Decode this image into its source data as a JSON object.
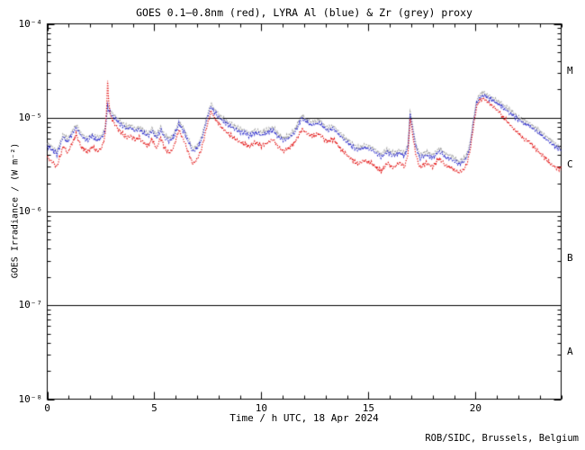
{
  "footer": "ROB/SIDC, Brussels, Belgium",
  "chart_data": {
    "type": "line",
    "title": "GOES 0.1–0.8nm (red), LYRA Al (blue) & Zr (grey) proxy",
    "xlabel": "Time / h UTC, 18 Apr 2024",
    "ylabel": "GOES Irradiance / (W m⁻²)",
    "xlim": [
      0,
      24
    ],
    "ylim_exponents": [
      -8,
      -4
    ],
    "x_major_ticks": [
      0,
      5,
      10,
      15,
      20
    ],
    "x_minor_step": 1,
    "y_tick_exponents": [
      -4,
      -5,
      -6,
      -7,
      -8
    ],
    "y_tick_labels": [
      "10⁻⁴",
      "10⁻⁵",
      "10⁻⁶",
      "10⁻⁷",
      "10⁻⁸"
    ],
    "hlines": [
      1e-05,
      1e-06,
      1e-07
    ],
    "flare_classes": [
      {
        "label": "M",
        "band_exponents": [
          -5,
          -4
        ]
      },
      {
        "label": "C",
        "band_exponents": [
          -6,
          -5
        ]
      },
      {
        "label": "B",
        "band_exponents": [
          -7,
          -6
        ]
      },
      {
        "label": "A",
        "band_exponents": [
          -8,
          -7
        ]
      }
    ],
    "grid": false,
    "line_style": "dotted",
    "unit": "values stored in 1e-6 W m-2",
    "x_hours": [
      0.0,
      0.45,
      0.75,
      0.95,
      1.35,
      1.6,
      1.85,
      2.1,
      2.35,
      2.55,
      2.7,
      2.78,
      2.82,
      2.86,
      2.95,
      3.1,
      3.3,
      3.5,
      3.7,
      3.9,
      4.1,
      4.3,
      4.5,
      4.7,
      4.9,
      5.1,
      5.3,
      5.5,
      5.7,
      5.9,
      6.15,
      6.4,
      6.6,
      6.8,
      7.0,
      7.2,
      7.45,
      7.65,
      7.8,
      8.0,
      8.3,
      8.6,
      8.9,
      9.2,
      9.45,
      9.7,
      10.0,
      10.3,
      10.55,
      10.8,
      11.05,
      11.3,
      11.55,
      11.9,
      12.1,
      12.3,
      12.7,
      12.9,
      13.1,
      13.35,
      13.6,
      13.9,
      14.2,
      14.5,
      14.8,
      15.1,
      15.35,
      15.6,
      15.9,
      16.15,
      16.45,
      16.7,
      16.85,
      16.95,
      17.05,
      17.2,
      17.4,
      17.7,
      18.0,
      18.3,
      18.6,
      18.9,
      19.2,
      19.45,
      19.6,
      19.75,
      19.9,
      20.05,
      20.2,
      20.4,
      20.6,
      20.85,
      21.1,
      21.4,
      21.7,
      22.0,
      22.3,
      22.5,
      22.7,
      23.0,
      23.3,
      23.6,
      23.8,
      24.0
    ],
    "series": [
      {
        "name": "GOES 0.1-0.8nm",
        "color": "#e00000",
        "values_1e6": [
          3.8,
          3.0,
          5.0,
          4.2,
          6.6,
          4.8,
          4.3,
          4.9,
          4.4,
          4.8,
          6.5,
          14,
          25,
          16,
          10.5,
          8.8,
          7.6,
          6.8,
          6.2,
          6.4,
          5.8,
          6.1,
          5.4,
          5.0,
          5.9,
          4.7,
          6.2,
          4.6,
          4.2,
          4.8,
          7.4,
          5.6,
          4.2,
          3.2,
          3.6,
          4.6,
          8.0,
          11.8,
          10.0,
          8.6,
          7.2,
          6.4,
          5.6,
          5.3,
          4.9,
          5.5,
          5.0,
          5.4,
          5.9,
          4.8,
          4.4,
          4.8,
          5.4,
          7.6,
          6.9,
          6.4,
          6.7,
          6.0,
          5.5,
          5.9,
          5.0,
          4.2,
          3.6,
          3.2,
          3.5,
          3.3,
          3.0,
          2.7,
          3.3,
          2.9,
          3.3,
          3.0,
          4.2,
          10.0,
          7.0,
          4.2,
          2.9,
          3.3,
          3.0,
          3.7,
          3.1,
          2.9,
          2.6,
          2.8,
          3.2,
          4.5,
          8.0,
          13.0,
          15.5,
          16.0,
          14.5,
          13.0,
          11.5,
          9.5,
          8.0,
          6.8,
          5.8,
          5.6,
          5.0,
          4.2,
          3.6,
          3.1,
          2.9,
          2.8
        ]
      },
      {
        "name": "LYRA Al proxy",
        "color": "#2020c8",
        "values_1e6": [
          5.0,
          4.1,
          6.3,
          5.5,
          7.9,
          6.3,
          5.7,
          6.3,
          5.8,
          6.1,
          7.3,
          10.5,
          13.0,
          12.0,
          11.0,
          10.0,
          9.0,
          8.2,
          7.6,
          7.8,
          7.2,
          7.4,
          6.8,
          6.4,
          7.2,
          6.1,
          7.4,
          6.0,
          5.6,
          6.2,
          8.5,
          7.0,
          5.5,
          4.3,
          4.7,
          5.7,
          9.5,
          13.2,
          11.5,
          10.2,
          8.8,
          8.0,
          7.2,
          6.9,
          6.4,
          7.0,
          6.5,
          6.9,
          7.4,
          6.2,
          5.7,
          6.1,
          6.9,
          10.0,
          9.0,
          8.4,
          8.7,
          7.9,
          7.3,
          7.7,
          6.7,
          5.7,
          5.0,
          4.5,
          4.8,
          4.6,
          4.2,
          3.8,
          4.3,
          3.9,
          4.2,
          3.9,
          4.9,
          10.8,
          8.0,
          5.0,
          3.7,
          4.0,
          3.7,
          4.4,
          3.8,
          3.6,
          3.2,
          3.4,
          3.8,
          5.0,
          8.8,
          14.0,
          16.5,
          17.2,
          16.2,
          15.0,
          13.8,
          12.2,
          10.8,
          9.6,
          8.6,
          8.2,
          7.6,
          6.7,
          5.9,
          5.2,
          4.8,
          4.5
        ]
      },
      {
        "name": "LYRA Zr proxy",
        "color": "#9a9a9a",
        "values_1e6": [
          5.4,
          4.4,
          6.7,
          5.9,
          8.5,
          6.7,
          6.1,
          6.7,
          6.2,
          6.5,
          7.8,
          11.2,
          14.0,
          12.8,
          11.8,
          10.7,
          9.6,
          8.8,
          8.1,
          8.3,
          7.7,
          7.9,
          7.3,
          6.8,
          7.7,
          6.5,
          7.9,
          6.4,
          6.0,
          6.6,
          9.1,
          7.5,
          5.9,
          4.6,
          5.0,
          6.1,
          10.2,
          14.1,
          12.3,
          10.9,
          9.4,
          8.6,
          7.7,
          7.4,
          6.8,
          7.5,
          7.0,
          7.4,
          7.9,
          6.6,
          6.1,
          6.5,
          7.4,
          10.7,
          9.6,
          9.0,
          9.3,
          8.5,
          7.8,
          8.2,
          7.2,
          6.1,
          5.4,
          4.8,
          5.1,
          4.9,
          4.5,
          4.1,
          4.6,
          4.2,
          4.5,
          4.2,
          5.2,
          11.6,
          8.6,
          5.4,
          4.0,
          4.3,
          4.0,
          4.7,
          4.1,
          3.9,
          3.4,
          3.6,
          4.1,
          5.4,
          9.4,
          15.0,
          17.7,
          18.4,
          17.3,
          16.1,
          14.8,
          13.1,
          11.6,
          10.3,
          9.2,
          8.8,
          8.1,
          7.2,
          6.3,
          5.6,
          5.1,
          4.8
        ]
      }
    ]
  }
}
